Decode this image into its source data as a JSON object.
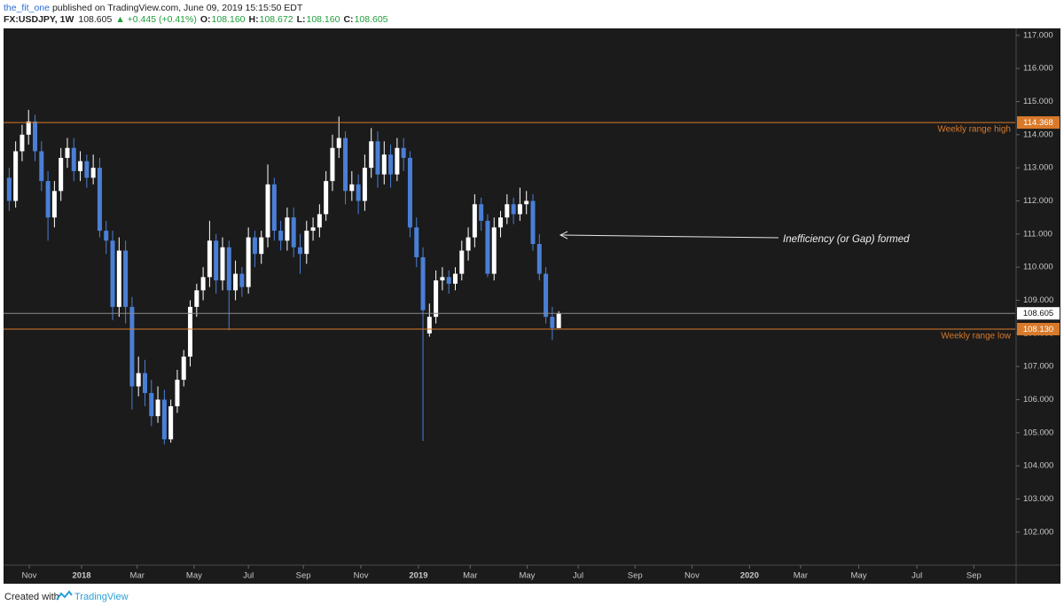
{
  "header": {
    "author": "the_fit_one",
    "published": "published on TradingView.com, June 09, 2019 15:15:50 EDT",
    "symbol": "FX:USDJPY, 1W",
    "last": "108.605",
    "change": "▲ +0.445 (+0.41%)",
    "ohlc": [
      {
        "label": "O:",
        "value": "108.160"
      },
      {
        "label": "H:",
        "value": "108.672"
      },
      {
        "label": "L:",
        "value": "108.160"
      },
      {
        "label": "C:",
        "value": "108.605"
      }
    ]
  },
  "footer": {
    "created": "Created with",
    "brand": "TradingView"
  },
  "chart_data": {
    "type": "candlestick",
    "x": [
      0,
      1,
      2,
      3,
      4,
      5,
      6,
      7,
      8,
      9,
      10,
      11,
      12,
      13,
      14,
      15,
      16,
      17,
      18,
      19,
      20,
      21,
      22,
      23,
      24,
      25,
      26,
      27,
      28,
      29,
      30,
      31,
      32,
      33,
      34,
      35,
      36,
      37,
      38,
      39,
      40,
      41,
      42,
      43,
      44,
      45,
      46,
      47,
      48,
      49,
      50,
      51,
      52,
      53,
      54,
      55,
      56,
      57,
      58,
      59,
      60,
      61,
      62,
      63,
      64,
      65,
      66,
      67,
      68,
      69,
      70,
      71,
      72,
      73,
      74,
      75,
      76,
      77,
      78,
      79,
      80,
      81,
      82,
      83,
      84,
      85
    ],
    "open": [
      112.7,
      112.0,
      113.5,
      114.0,
      114.4,
      113.5,
      112.6,
      111.5,
      112.3,
      113.3,
      113.6,
      112.9,
      113.2,
      112.7,
      113.0,
      111.1,
      110.8,
      108.8,
      110.5,
      108.8,
      106.4,
      106.8,
      106.2,
      105.5,
      106.0,
      104.8,
      105.8,
      106.6,
      107.3,
      108.8,
      109.3,
      109.7,
      110.8,
      109.6,
      110.6,
      109.3,
      109.8,
      109.4,
      110.9,
      110.4,
      110.9,
      112.5,
      111.1,
      110.8,
      111.5,
      110.6,
      110.4,
      111.1,
      111.2,
      111.6,
      112.6,
      113.6,
      113.9,
      112.3,
      112.5,
      112.0,
      113.0,
      113.8,
      112.8,
      113.4,
      112.8,
      113.6,
      113.3,
      111.2,
      110.3,
      108.0,
      108.5,
      109.6,
      109.7,
      109.5,
      109.8,
      110.5,
      110.9,
      111.9,
      111.4,
      109.8,
      111.2,
      111.5,
      111.9,
      111.6,
      111.9,
      112.0,
      110.7,
      109.8,
      108.5,
      108.16
    ],
    "high": [
      113.0,
      113.8,
      114.3,
      114.75,
      114.6,
      113.8,
      112.9,
      112.6,
      113.6,
      113.9,
      113.9,
      113.5,
      113.4,
      113.4,
      113.3,
      111.4,
      111.1,
      110.9,
      110.8,
      109.1,
      107.3,
      107.2,
      106.6,
      106.4,
      106.3,
      106.0,
      106.9,
      107.5,
      109.0,
      109.5,
      110.0,
      111.4,
      111.0,
      110.9,
      110.8,
      110.2,
      110.0,
      111.2,
      111.1,
      111.1,
      113.1,
      112.7,
      111.4,
      111.8,
      111.8,
      111.0,
      111.4,
      111.5,
      111.9,
      112.9,
      114.0,
      114.55,
      114.1,
      112.9,
      112.8,
      113.4,
      114.2,
      114.1,
      113.8,
      113.7,
      113.9,
      113.9,
      113.5,
      111.5,
      110.6,
      108.9,
      109.9,
      110.0,
      109.9,
      110.0,
      110.8,
      111.2,
      112.2,
      112.1,
      111.6,
      111.5,
      111.7,
      112.2,
      112.1,
      112.4,
      112.3,
      112.2,
      111.0,
      110.0,
      108.8,
      108.672
    ],
    "low": [
      111.7,
      111.8,
      113.2,
      113.7,
      113.2,
      112.3,
      110.8,
      111.2,
      112.0,
      113.0,
      112.6,
      112.6,
      112.4,
      112.5,
      110.9,
      110.4,
      108.4,
      108.5,
      108.3,
      105.7,
      106.1,
      105.8,
      105.2,
      105.3,
      104.65,
      104.7,
      105.6,
      106.4,
      107.0,
      108.5,
      109.0,
      109.4,
      109.2,
      109.3,
      108.1,
      109.0,
      109.1,
      109.2,
      110.0,
      110.1,
      110.6,
      110.8,
      110.5,
      110.5,
      110.3,
      109.8,
      110.1,
      110.8,
      110.9,
      111.4,
      112.3,
      113.3,
      111.9,
      112.0,
      111.6,
      111.7,
      112.7,
      112.4,
      112.5,
      112.4,
      112.6,
      112.9,
      110.9,
      110.0,
      104.75,
      107.9,
      108.3,
      109.3,
      109.2,
      109.3,
      109.6,
      110.2,
      110.6,
      111.1,
      109.7,
      109.6,
      110.9,
      111.3,
      111.3,
      111.4,
      111.6,
      110.5,
      109.6,
      108.3,
      107.8,
      108.16
    ],
    "close": [
      112.0,
      113.5,
      114.0,
      114.4,
      113.5,
      112.6,
      111.5,
      112.3,
      113.3,
      113.6,
      112.9,
      113.2,
      112.7,
      113.0,
      111.1,
      110.8,
      108.8,
      110.5,
      108.8,
      106.4,
      106.8,
      106.2,
      105.5,
      106.0,
      104.8,
      105.8,
      106.6,
      107.3,
      108.8,
      109.3,
      109.7,
      110.8,
      109.6,
      110.6,
      109.3,
      109.8,
      109.4,
      110.9,
      110.4,
      110.9,
      112.5,
      111.1,
      110.8,
      111.5,
      110.6,
      110.4,
      111.1,
      111.2,
      111.6,
      112.6,
      113.6,
      113.9,
      112.3,
      112.5,
      112.0,
      113.0,
      113.8,
      112.8,
      113.4,
      112.8,
      113.6,
      113.3,
      111.2,
      110.3,
      108.7,
      108.5,
      109.6,
      109.7,
      109.5,
      109.8,
      110.5,
      110.9,
      111.9,
      111.4,
      109.8,
      111.2,
      111.5,
      111.9,
      111.6,
      111.9,
      112.0,
      110.7,
      109.8,
      108.5,
      108.16,
      108.605
    ],
    "up_color": "#ffffff",
    "down_color": "#4a7fd6",
    "xlim": [
      -0.87,
      155.6
    ],
    "xticks": [
      {
        "value": 3.1,
        "label": "Nov"
      },
      {
        "value": 11.2,
        "label": "2018"
      },
      {
        "value": 19.8,
        "label": "Mar"
      },
      {
        "value": 28.6,
        "label": "May"
      },
      {
        "value": 37.0,
        "label": "Jul"
      },
      {
        "value": 45.5,
        "label": "Sep"
      },
      {
        "value": 54.4,
        "label": "Nov"
      },
      {
        "value": 63.3,
        "label": "2019"
      },
      {
        "value": 71.3,
        "label": "Mar"
      },
      {
        "value": 80.1,
        "label": "May"
      },
      {
        "value": 88.0,
        "label": "Jul"
      },
      {
        "value": 96.8,
        "label": "Sep"
      },
      {
        "value": 105.6,
        "label": "Nov"
      },
      {
        "value": 114.5,
        "label": "2020"
      },
      {
        "value": 122.4,
        "label": "Mar"
      },
      {
        "value": 131.4,
        "label": "May"
      },
      {
        "value": 140.4,
        "label": "Jul"
      },
      {
        "value": 149.2,
        "label": "Sep"
      }
    ],
    "ylim": [
      101.03,
      117.21
    ],
    "yticks": [
      {
        "value": 102,
        "label": "102.000"
      },
      {
        "value": 103,
        "label": "103.000"
      },
      {
        "value": 104,
        "label": "104.000"
      },
      {
        "value": 105,
        "label": "105.000"
      },
      {
        "value": 106,
        "label": "106.000"
      },
      {
        "value": 107,
        "label": "107.000"
      },
      {
        "value": 108,
        "label": "108.000"
      },
      {
        "value": 109,
        "label": "109.000"
      },
      {
        "value": 110,
        "label": "110.000"
      },
      {
        "value": 111,
        "label": "111.000"
      },
      {
        "value": 112,
        "label": "112.000"
      },
      {
        "value": 113,
        "label": "113.000"
      },
      {
        "value": 114,
        "label": "114.000"
      },
      {
        "value": 115,
        "label": "115.000"
      },
      {
        "value": 116,
        "label": "116.000"
      },
      {
        "value": 117,
        "label": "117.000"
      }
    ],
    "grid": false,
    "price_lines": [
      {
        "value": 114.368,
        "name": "Weekly range high",
        "color": "#d97a2b"
      },
      {
        "value": 108.605,
        "color": "#8a8a8a"
      },
      {
        "value": 108.13,
        "value_label": "108.130",
        "name": "Weekly range low",
        "color": "#d97a2b"
      }
    ],
    "annotations": [
      {
        "text": "Inefficiency (or Gap) formed"
      }
    ]
  }
}
